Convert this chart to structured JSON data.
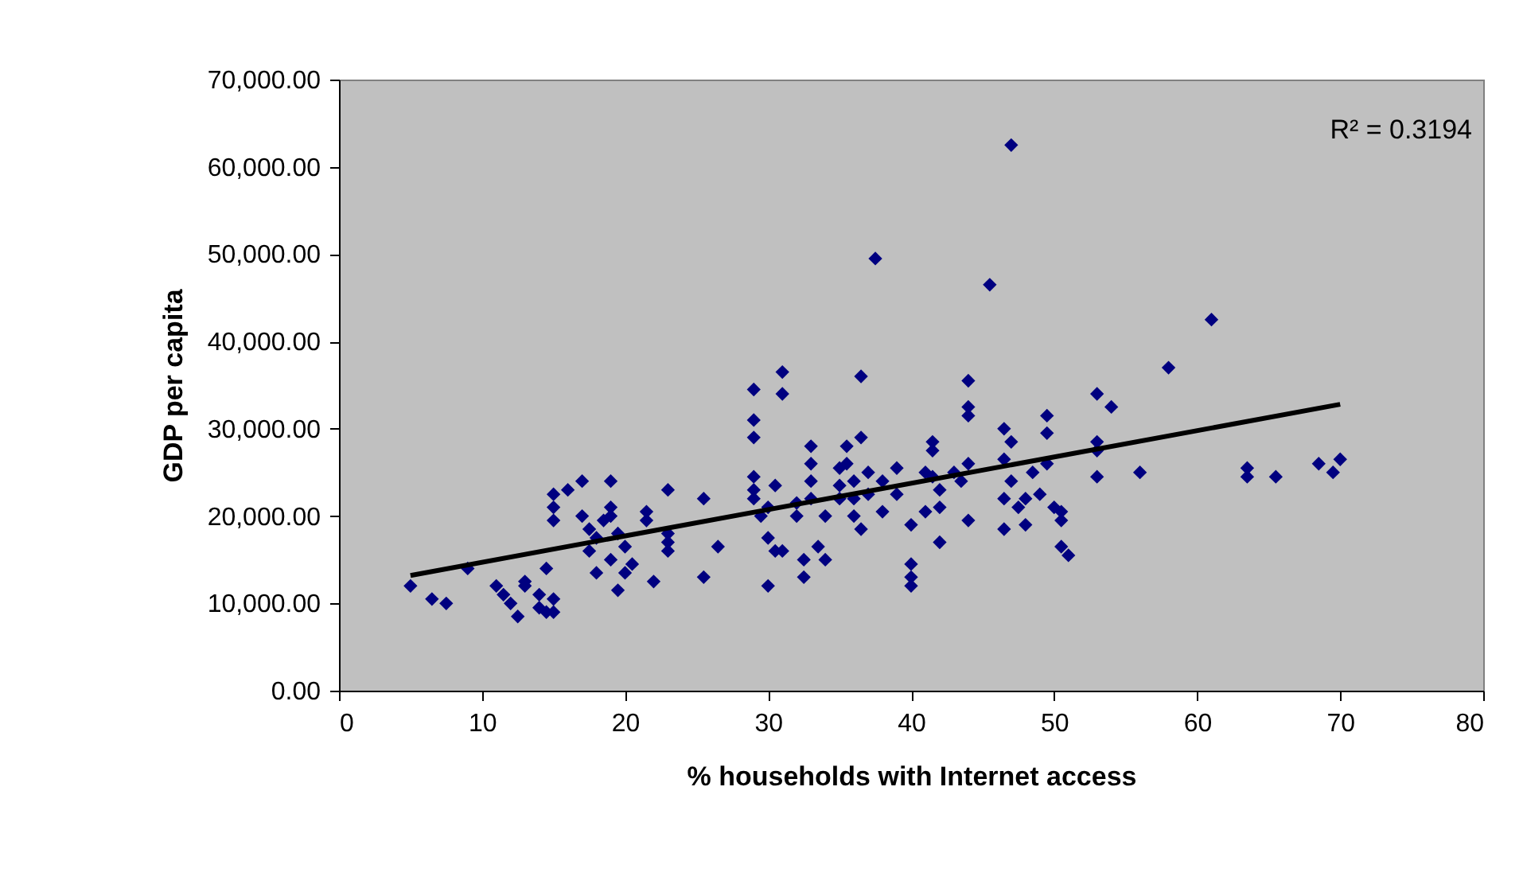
{
  "chart_data": {
    "type": "scatter",
    "xlabel": "% households with Internet access",
    "ylabel": "GDP per capita",
    "annotations": [
      "R² = 0.3194"
    ],
    "xlim": [
      0,
      80
    ],
    "xticks": [
      0,
      10,
      20,
      30,
      40,
      50,
      60,
      70,
      80
    ],
    "ylim": [
      0,
      70000
    ],
    "yticks": [
      {
        "value": 0,
        "label": "0.00"
      },
      {
        "value": 10000,
        "label": "10,000.00"
      },
      {
        "value": 20000,
        "label": "20,000.00"
      },
      {
        "value": 30000,
        "label": "30,000.00"
      },
      {
        "value": 40000,
        "label": "40,000.00"
      },
      {
        "value": 50000,
        "label": "50,000.00"
      },
      {
        "value": 60000,
        "label": "60,000.00"
      },
      {
        "value": 70000,
        "label": "70,000.00"
      }
    ],
    "grid": false,
    "series": [
      {
        "color": "#000080",
        "marker": "diamond",
        "x": [
          5,
          6.5,
          7.5,
          9,
          11,
          11.5,
          12,
          12.5,
          13,
          13,
          14,
          14,
          14.5,
          14.5,
          15,
          15,
          15,
          15,
          15,
          16,
          17,
          17,
          17.5,
          17.5,
          18,
          18,
          18.5,
          19,
          19,
          19,
          19,
          19.5,
          19.5,
          20,
          20,
          20.5,
          21.5,
          21.5,
          22,
          23,
          23,
          23,
          23,
          25.5,
          25.5,
          26.5,
          29,
          29,
          29,
          29,
          29,
          29,
          29.5,
          30,
          30,
          30,
          30.5,
          30.5,
          31,
          31,
          31,
          32,
          32,
          32.5,
          32.5,
          33,
          33,
          33,
          33,
          33.5,
          34,
          34,
          35,
          35,
          35,
          35.5,
          35.5,
          36,
          36,
          36,
          36.5,
          36.5,
          36.5,
          37,
          37,
          37.5,
          38,
          38,
          39,
          39,
          40,
          40,
          40,
          40,
          41,
          41,
          41.5,
          41.5,
          41.5,
          42,
          42,
          42,
          43,
          43.5,
          44,
          44,
          44,
          44,
          44,
          45.5,
          46.5,
          46.5,
          46.5,
          46.5,
          47,
          47,
          47,
          47.5,
          48,
          48,
          48.5,
          49,
          49.5,
          49.5,
          49.5,
          50,
          50.5,
          50.5,
          50.5,
          51,
          53,
          53,
          53,
          53,
          54,
          56,
          58,
          61,
          63.5,
          63.5,
          65.5,
          68.5,
          69.5,
          70
        ],
        "values": [
          12000,
          10500,
          10000,
          14000,
          12000,
          11000,
          10000,
          8500,
          12500,
          12000,
          11000,
          9500,
          9000,
          14000,
          10500,
          9000,
          19500,
          21000,
          22500,
          23000,
          24000,
          20000,
          18500,
          16000,
          13500,
          17500,
          19500,
          21000,
          20000,
          24000,
          15000,
          18000,
          11500,
          16500,
          13500,
          14500,
          20500,
          19500,
          12500,
          23000,
          18000,
          17000,
          16000,
          22000,
          13000,
          16500,
          34500,
          31000,
          29000,
          24500,
          23000,
          22000,
          20000,
          21000,
          17500,
          12000,
          23500,
          16000,
          36500,
          34000,
          16000,
          20000,
          21500,
          13000,
          15000,
          28000,
          26000,
          24000,
          22000,
          16500,
          15000,
          20000,
          22000,
          23500,
          25500,
          26000,
          28000,
          24000,
          22000,
          20000,
          36000,
          29000,
          18500,
          25000,
          22500,
          49500,
          24000,
          20500,
          25500,
          22500,
          19000,
          14500,
          13000,
          12000,
          20500,
          25000,
          27500,
          28500,
          24500,
          23000,
          17000,
          21000,
          25000,
          24000,
          35500,
          32500,
          31500,
          26000,
          19500,
          46500,
          30000,
          26500,
          22000,
          18500,
          62500,
          28500,
          24000,
          21000,
          19000,
          22000,
          25000,
          22500,
          31500,
          29500,
          26000,
          21000,
          19500,
          20500,
          16500,
          15500,
          34000,
          28500,
          27500,
          24500,
          32500,
          25000,
          37000,
          42500,
          25500,
          24500,
          24500,
          26000,
          25000,
          26500
        ]
      },
      {
        "type": "line",
        "color": "#000000",
        "line_style": "solid",
        "x": [
          5,
          70
        ],
        "values": [
          13200,
          32800
        ]
      }
    ]
  }
}
